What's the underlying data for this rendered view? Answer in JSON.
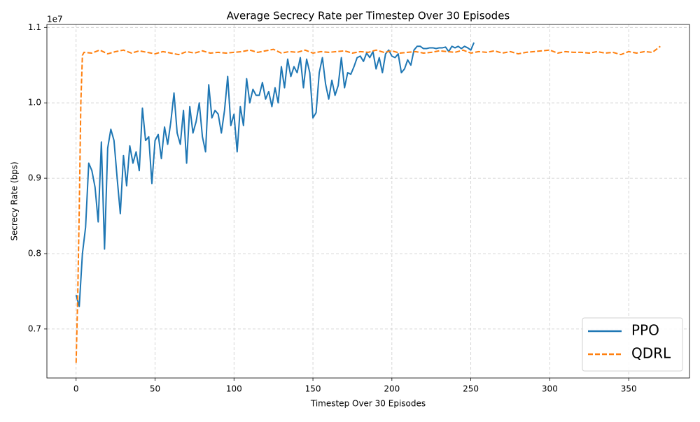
{
  "chart_data": {
    "type": "line",
    "title": "Average Secrecy Rate per Timestep Over 30 Episodes",
    "x_label": "Timestep Over 30 Episodes",
    "y_label": "Secrecy Rate (bps)",
    "y_offset_label": "1e7",
    "xlim": [
      -18.5,
      388.5
    ],
    "xticks": [
      0,
      50,
      100,
      150,
      200,
      250,
      300,
      350
    ],
    "ylim": [
      0.635,
      1.104
    ],
    "yticks": [
      0.7,
      0.8,
      0.9,
      {
        "value": 1,
        "label": "1.0"
      },
      1.1
    ],
    "grid": true,
    "legend": "lower right",
    "series": [
      {
        "name": "PPO",
        "color": "#1f77b4",
        "dash": false,
        "x": [
          0,
          2,
          4,
          6,
          8,
          10,
          12,
          14,
          16,
          18,
          20,
          22,
          24,
          26,
          28,
          30,
          32,
          34,
          36,
          38,
          40,
          42,
          44,
          46,
          48,
          50,
          52,
          54,
          56,
          58,
          60,
          62,
          64,
          66,
          68,
          70,
          72,
          74,
          76,
          78,
          80,
          82,
          84,
          86,
          88,
          90,
          92,
          94,
          96,
          98,
          100,
          102,
          104,
          106,
          108,
          110,
          112,
          114,
          116,
          118,
          120,
          122,
          124,
          126,
          128,
          130,
          132,
          134,
          136,
          138,
          140,
          142,
          144,
          146,
          148,
          150,
          152,
          154,
          156,
          158,
          160,
          162,
          164,
          166,
          168,
          170,
          172,
          174,
          176,
          178,
          180,
          182,
          184,
          186,
          188,
          190,
          192,
          194,
          196,
          198,
          200,
          202,
          204,
          206,
          208,
          210,
          212,
          214,
          216,
          218,
          220,
          222,
          224,
          226,
          228,
          230,
          232,
          234,
          236,
          238,
          240,
          242,
          244,
          246,
          248,
          250,
          252
        ],
        "values": [
          0.745,
          0.73,
          0.8,
          0.835,
          0.92,
          0.91,
          0.888,
          0.842,
          0.948,
          0.806,
          0.94,
          0.965,
          0.95,
          0.9,
          0.853,
          0.93,
          0.89,
          0.943,
          0.92,
          0.935,
          0.91,
          0.993,
          0.95,
          0.955,
          0.893,
          0.95,
          0.958,
          0.926,
          0.968,
          0.945,
          0.975,
          1.013,
          0.96,
          0.945,
          0.99,
          0.92,
          0.995,
          0.96,
          0.975,
          1.0,
          0.955,
          0.935,
          1.024,
          0.98,
          0.99,
          0.985,
          0.96,
          0.99,
          1.035,
          0.97,
          0.985,
          0.935,
          0.995,
          0.97,
          1.032,
          1.0,
          1.018,
          1.01,
          1.01,
          1.027,
          1.005,
          1.015,
          0.995,
          1.02,
          1.0,
          1.048,
          1.02,
          1.058,
          1.035,
          1.048,
          1.04,
          1.06,
          1.02,
          1.058,
          1.04,
          0.98,
          0.987,
          1.04,
          1.06,
          1.025,
          1.005,
          1.03,
          1.01,
          1.023,
          1.06,
          1.02,
          1.04,
          1.038,
          1.048,
          1.06,
          1.062,
          1.055,
          1.066,
          1.06,
          1.068,
          1.045,
          1.06,
          1.04,
          1.065,
          1.07,
          1.062,
          1.06,
          1.065,
          1.04,
          1.045,
          1.057,
          1.05,
          1.07,
          1.075,
          1.075,
          1.072,
          1.072,
          1.073,
          1.073,
          1.072,
          1.073,
          1.073,
          1.074,
          1.068,
          1.075,
          1.073,
          1.075,
          1.072,
          1.075,
          1.073,
          1.07,
          1.08
        ]
      },
      {
        "name": "QDRL",
        "color": "#ff7f0e",
        "dash": true,
        "x": [
          0,
          1,
          2,
          3,
          4,
          5,
          10,
          15,
          20,
          25,
          30,
          35,
          40,
          45,
          50,
          55,
          60,
          65,
          70,
          75,
          80,
          85,
          90,
          95,
          100,
          105,
          110,
          115,
          120,
          125,
          130,
          135,
          140,
          145,
          150,
          155,
          160,
          165,
          170,
          175,
          180,
          185,
          190,
          195,
          200,
          205,
          210,
          215,
          220,
          225,
          230,
          235,
          240,
          245,
          250,
          255,
          260,
          265,
          270,
          275,
          280,
          285,
          290,
          295,
          300,
          305,
          310,
          315,
          320,
          325,
          330,
          335,
          340,
          345,
          350,
          355,
          360,
          365,
          370
        ],
        "values": [
          0.655,
          0.74,
          0.86,
          1.0,
          1.063,
          1.067,
          1.066,
          1.07,
          1.065,
          1.068,
          1.07,
          1.066,
          1.069,
          1.067,
          1.065,
          1.068,
          1.066,
          1.064,
          1.068,
          1.066,
          1.069,
          1.066,
          1.067,
          1.066,
          1.067,
          1.068,
          1.07,
          1.067,
          1.069,
          1.071,
          1.066,
          1.068,
          1.067,
          1.07,
          1.066,
          1.068,
          1.067,
          1.068,
          1.069,
          1.066,
          1.068,
          1.067,
          1.07,
          1.067,
          1.069,
          1.066,
          1.067,
          1.068,
          1.066,
          1.067,
          1.069,
          1.068,
          1.067,
          1.07,
          1.066,
          1.068,
          1.067,
          1.069,
          1.066,
          1.068,
          1.065,
          1.067,
          1.068,
          1.069,
          1.07,
          1.066,
          1.068,
          1.067,
          1.067,
          1.066,
          1.068,
          1.066,
          1.067,
          1.064,
          1.068,
          1.066,
          1.068,
          1.067,
          1.075
        ]
      }
    ]
  }
}
